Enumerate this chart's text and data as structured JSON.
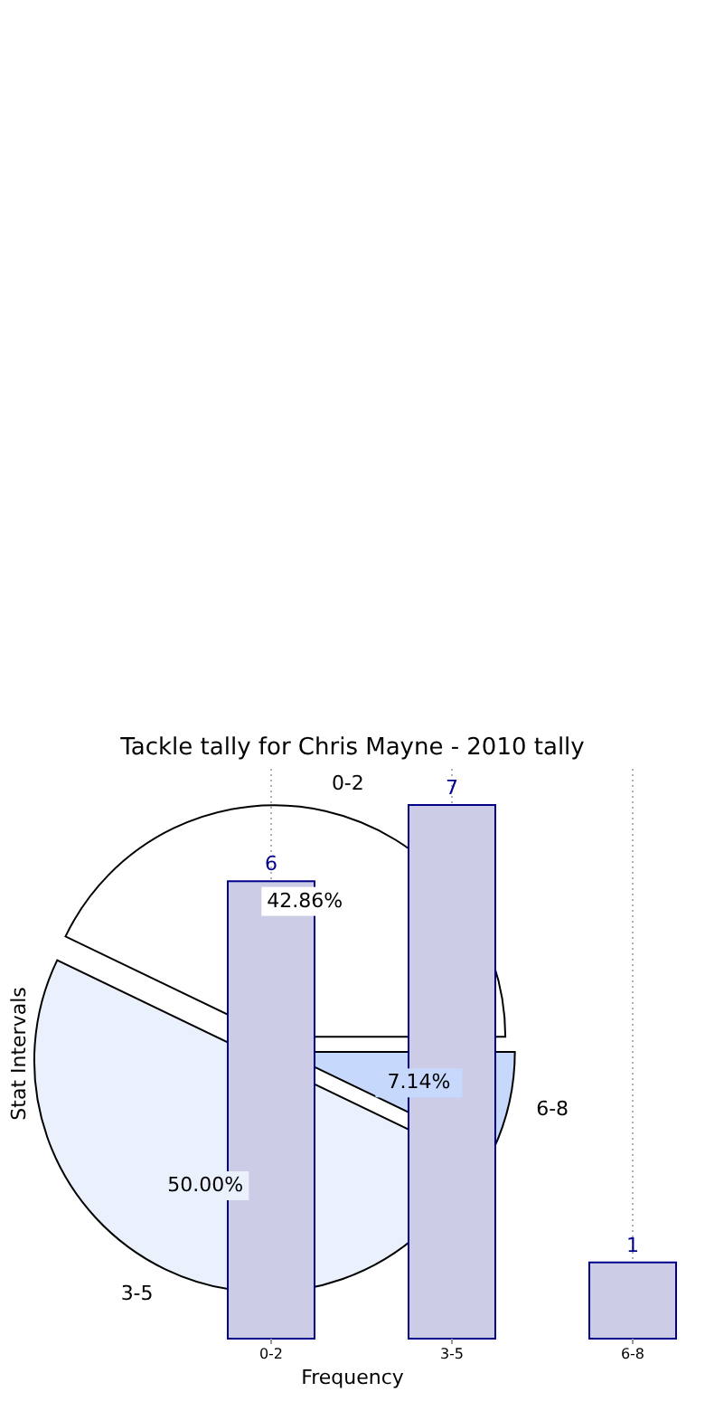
{
  "chart_data": [
    {
      "type": "pie",
      "title": "Tackle tally for Chris Mayne - 2010 tally",
      "categories": [
        "0-2",
        "3-5",
        "6-8"
      ],
      "values": [
        42.86,
        50,
        7.14
      ],
      "colors": [
        "#ffffff",
        "#eaf1fd",
        "#c6d9fd"
      ],
      "value_labels": [
        "42.86%",
        "50.00%",
        "7.14%"
      ]
    },
    {
      "type": "bar",
      "xlabel": "Frequency",
      "ylabel": "Stat Intervals",
      "categories": [
        "0-2",
        "3-5",
        "6-8"
      ],
      "values": [
        6,
        7,
        1
      ],
      "data_labels": true,
      "color": "#cccce6",
      "grid": "x"
    }
  ]
}
